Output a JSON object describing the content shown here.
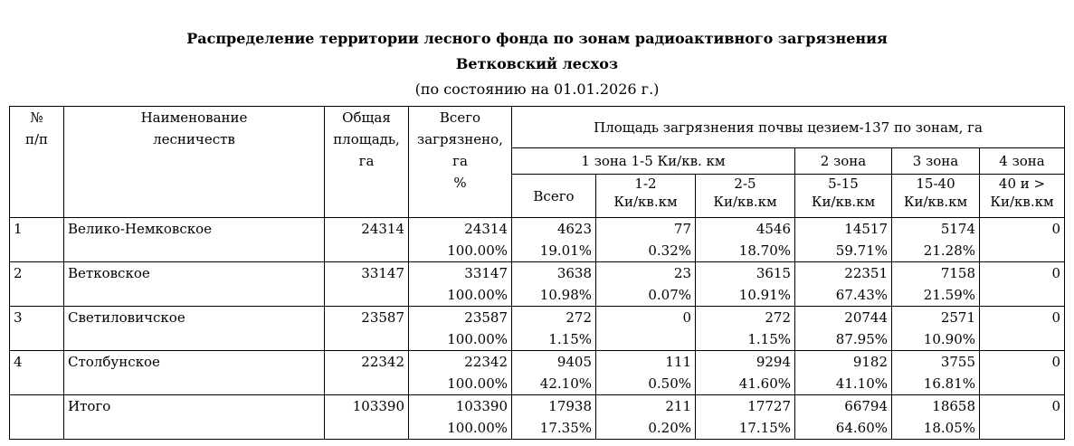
{
  "title": "Распределение территории лесного фонда по зонам радиоактивного загрязнения",
  "subtitle": "Ветковский лесхоз",
  "date_line": "(по состоянию на  01.01.2026 г.)",
  "headers": {
    "num": "№",
    "num2": "п/п",
    "name1": "Наименование",
    "name2": "лесничеств",
    "area1": "Общая",
    "area2": "площадь,",
    "area3": "га",
    "total1": "Всего",
    "total2": "загрязнено,",
    "total3": "га",
    "total4": "%",
    "group": "Площадь загрязнения почвы цезием-137 по зонам, га",
    "zone1": "1 зона  1-5 Ки/кв. км",
    "zone2": "2 зона",
    "zone3": "3 зона",
    "zone4": "4 зона",
    "z1_all": "Всего",
    "z1_a1": "1-2",
    "z1_a2": "Ки/кв.км",
    "z1_b1": "2-5",
    "z1_b2": "Ки/кв.км",
    "z2_1": "5-15",
    "z2_2": "Ки/кв.км",
    "z3_1": "15-40",
    "z3_2": "Ки/кв.км",
    "z4_1": "40 и >",
    "z4_2": "Ки/кв.км"
  },
  "rows": [
    {
      "num": "1",
      "name": "Велико-Немковское",
      "area": "24314",
      "total": "24314",
      "total_pct": "100.00%",
      "z1": "4623",
      "z1_pct": "19.01%",
      "z1a": "77",
      "z1a_pct": "0.32%",
      "z1b": "4546",
      "z1b_pct": "18.70%",
      "z2": "14517",
      "z2_pct": "59.71%",
      "z3": "5174",
      "z3_pct": "21.28%",
      "z4": "0",
      "z4_pct": ""
    },
    {
      "num": "2",
      "name": "Ветковское",
      "area": "33147",
      "total": "33147",
      "total_pct": "100.00%",
      "z1": "3638",
      "z1_pct": "10.98%",
      "z1a": "23",
      "z1a_pct": "0.07%",
      "z1b": "3615",
      "z1b_pct": "10.91%",
      "z2": "22351",
      "z2_pct": "67.43%",
      "z3": "7158",
      "z3_pct": "21.59%",
      "z4": "0",
      "z4_pct": ""
    },
    {
      "num": "3",
      "name": "Светиловичское",
      "area": "23587",
      "total": "23587",
      "total_pct": "100.00%",
      "z1": "272",
      "z1_pct": "1.15%",
      "z1a": "0",
      "z1a_pct": "",
      "z1b": "272",
      "z1b_pct": "1.15%",
      "z2": "20744",
      "z2_pct": "87.95%",
      "z3": "2571",
      "z3_pct": "10.90%",
      "z4": "0",
      "z4_pct": ""
    },
    {
      "num": "4",
      "name": "Столбунское",
      "area": "22342",
      "total": "22342",
      "total_pct": "100.00%",
      "z1": "9405",
      "z1_pct": "42.10%",
      "z1a": "111",
      "z1a_pct": "0.50%",
      "z1b": "9294",
      "z1b_pct": "41.60%",
      "z2": "9182",
      "z2_pct": "41.10%",
      "z3": "3755",
      "z3_pct": "16.81%",
      "z4": "0",
      "z4_pct": ""
    },
    {
      "num": "",
      "name": "Итого",
      "area": "103390",
      "total": "103390",
      "total_pct": "100.00%",
      "z1": "17938",
      "z1_pct": "17.35%",
      "z1a": "211",
      "z1a_pct": "0.20%",
      "z1b": "17727",
      "z1b_pct": "17.15%",
      "z2": "66794",
      "z2_pct": "64.60%",
      "z3": "18658",
      "z3_pct": "18.05%",
      "z4": "0",
      "z4_pct": ""
    }
  ]
}
